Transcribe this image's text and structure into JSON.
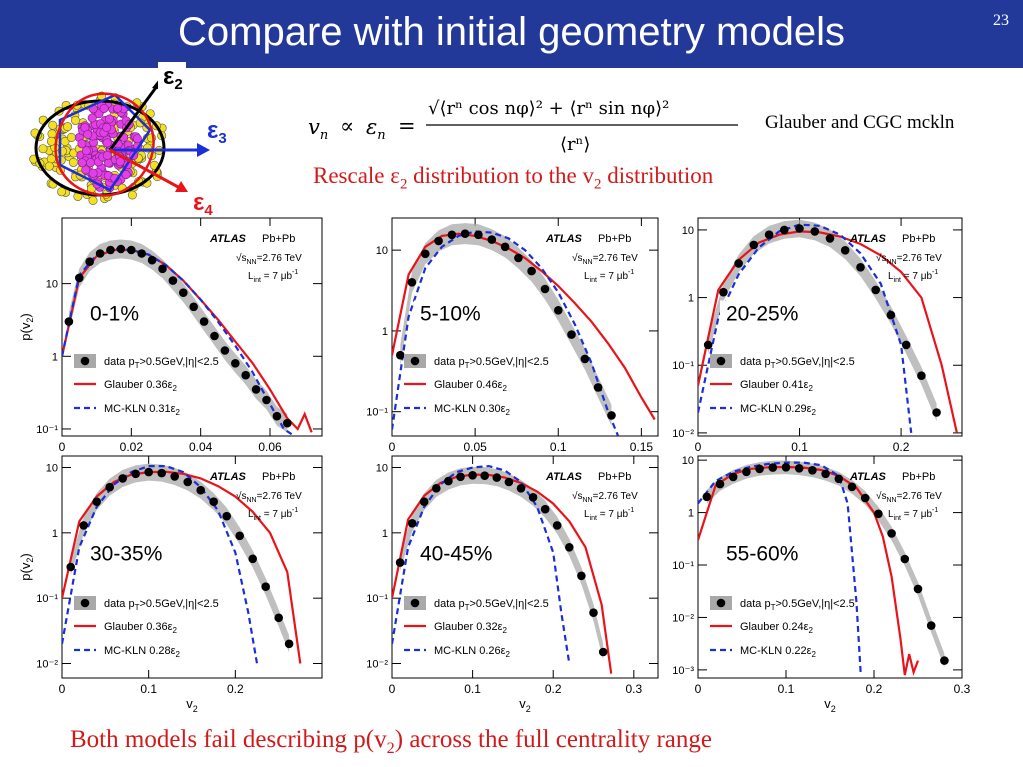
{
  "slide": {
    "title": "Compare with initial geometry models",
    "page_number": "23",
    "formula_lhs": "v",
    "formula_proportional": "∝",
    "formula_eps": "ε",
    "formula_n": "n",
    "formula_num": "√⟨rⁿ cos nφ⟩² + ⟨rⁿ sin nφ⟩²",
    "formula_den": "⟨rⁿ⟩",
    "glauber_label": "Glauber and CGC mckln",
    "rescale_pre": "Rescale ε",
    "rescale_sub1": "2",
    "rescale_mid": " distribution to the v",
    "rescale_sub2": "2",
    "rescale_post": " distribution",
    "bottom_pre": "Both models fail describing p(v",
    "bottom_sub": "2",
    "bottom_post": ") across the full centrality range",
    "eps2_label": "ε",
    "eps2_sub": "2",
    "eps3_label": "ε",
    "eps3_sub": "3",
    "eps4_label": "ε",
    "eps4_sub": "4"
  },
  "legend": {
    "atlas": "ATLAS",
    "system": "Pb+Pb",
    "energy": "s",
    "energy_sub": "NN",
    "energy_val": "=2.76 TeV",
    "lumi": "L",
    "lumi_sub": "int",
    "lumi_val": " = 7 μb",
    "lumi_sup": "-1",
    "data_pre": "data p",
    "data_sub": "T",
    "data_post": ">0.5GeV,|η|<2.5",
    "glauber": "Glauber",
    "mcklN": "MC-KLN",
    "eps_sym": "ε",
    "eps_sub": "2"
  },
  "axes": {
    "ylabel": "p(v",
    "ylabel_sub": "2",
    "ylabel_close": ")",
    "xlabel": "v",
    "xlabel_sub": "2"
  },
  "colors": {
    "header": "#23399a",
    "glauber": "#e8141a",
    "mckln": "#1a2fd6",
    "data": "#000000",
    "band": "#a9a9a9",
    "highlight": "#d21a1a"
  },
  "chart_data": [
    {
      "type": "line",
      "centrality": "0-1%",
      "glauber_scale": "0.36",
      "mckln_scale": "0.31",
      "xlim": [
        0,
        0.075
      ],
      "log_y": true,
      "ylim": [
        0.08,
        80
      ],
      "xticks": [
        "0",
        "0.02",
        "0.04",
        "0.06"
      ],
      "xtick_vals": [
        0,
        0.02,
        0.04,
        0.06
      ],
      "yticks": [
        "10",
        "1",
        "10⁻¹"
      ],
      "ytick_vals": [
        10,
        1,
        0.1
      ],
      "data_x": [
        0.002,
        0.005,
        0.008,
        0.011,
        0.014,
        0.017,
        0.02,
        0.023,
        0.026,
        0.029,
        0.032,
        0.035,
        0.038,
        0.041,
        0.044,
        0.047,
        0.05,
        0.053,
        0.056,
        0.059,
        0.062,
        0.065
      ],
      "data_y": [
        3,
        12,
        20,
        26,
        29,
        30,
        29,
        26,
        21,
        16,
        11,
        7.5,
        4.8,
        3,
        1.9,
        1.2,
        0.8,
        0.55,
        0.35,
        0.25,
        0.15,
        0.12
      ],
      "glauber_x": [
        0,
        0.005,
        0.01,
        0.015,
        0.02,
        0.025,
        0.03,
        0.035,
        0.04,
        0.045,
        0.05,
        0.055,
        0.06,
        0.065,
        0.068,
        0.07,
        0.072
      ],
      "glauber_y": [
        1,
        12,
        24,
        29,
        29,
        25,
        18,
        11,
        6,
        3.2,
        1.6,
        0.8,
        0.35,
        0.14,
        0.1,
        0.16,
        0.09
      ],
      "mckln_x": [
        0,
        0.005,
        0.01,
        0.015,
        0.02,
        0.025,
        0.03,
        0.035,
        0.04,
        0.045,
        0.05,
        0.055,
        0.06,
        0.064,
        0.067
      ],
      "mckln_y": [
        1,
        13,
        25,
        30,
        29,
        25,
        18,
        11,
        6,
        3,
        1.4,
        0.6,
        0.22,
        0.1,
        0.08
      ]
    },
    {
      "type": "line",
      "centrality": "5-10%",
      "glauber_scale": "0.46",
      "mckln_scale": "0.30",
      "xlim": [
        0,
        0.16
      ],
      "log_y": true,
      "ylim": [
        0.05,
        25
      ],
      "xticks": [
        "0",
        "0.05",
        "0.1",
        "0.15"
      ],
      "xtick_vals": [
        0,
        0.05,
        0.1,
        0.15
      ],
      "yticks": [
        "10",
        "1",
        "10⁻¹"
      ],
      "ytick_vals": [
        10,
        1,
        0.1
      ],
      "data_x": [
        0.005,
        0.012,
        0.02,
        0.028,
        0.036,
        0.044,
        0.052,
        0.06,
        0.068,
        0.076,
        0.084,
        0.092,
        0.1,
        0.108,
        0.116,
        0.124,
        0.132
      ],
      "data_y": [
        0.5,
        4,
        9,
        13,
        15.5,
        16,
        15.5,
        13.5,
        11,
        8,
        5.5,
        3.3,
        1.8,
        0.9,
        0.45,
        0.2,
        0.09
      ],
      "glauber_x": [
        0,
        0.01,
        0.02,
        0.03,
        0.04,
        0.05,
        0.06,
        0.07,
        0.08,
        0.09,
        0.1,
        0.11,
        0.12,
        0.13,
        0.14,
        0.15,
        0.158
      ],
      "glauber_y": [
        0.5,
        5,
        11,
        15,
        16,
        15,
        13,
        10.5,
        8,
        5.5,
        3.6,
        2.2,
        1.3,
        0.7,
        0.35,
        0.15,
        0.08
      ],
      "mckln_x": [
        0,
        0.01,
        0.02,
        0.03,
        0.04,
        0.05,
        0.06,
        0.07,
        0.08,
        0.09,
        0.1,
        0.11,
        0.12,
        0.13,
        0.136
      ],
      "mckln_y": [
        0.06,
        1.5,
        6,
        11,
        15,
        17,
        16.5,
        14,
        10,
        6,
        3,
        1.2,
        0.4,
        0.1,
        0.05
      ]
    },
    {
      "type": "line",
      "centrality": "20-25%",
      "glauber_scale": "0.41",
      "mckln_scale": "0.29",
      "xlim": [
        0,
        0.26
      ],
      "log_y": true,
      "ylim": [
        0.009,
        15
      ],
      "xticks": [
        "0",
        "0.1",
        "0.2"
      ],
      "xtick_vals": [
        0,
        0.1,
        0.2
      ],
      "yticks": [
        "10",
        "1",
        "10⁻¹",
        "10⁻²"
      ],
      "ytick_vals": [
        10,
        1,
        0.1,
        0.01
      ],
      "data_x": [
        0.01,
        0.025,
        0.04,
        0.055,
        0.07,
        0.085,
        0.1,
        0.115,
        0.13,
        0.145,
        0.16,
        0.175,
        0.19,
        0.205,
        0.22,
        0.235
      ],
      "data_y": [
        0.2,
        1.2,
        3.2,
        6,
        8.5,
        10,
        10.5,
        9.5,
        7.5,
        5,
        2.8,
        1.3,
        0.55,
        0.2,
        0.07,
        0.02
      ],
      "glauber_x": [
        0,
        0.02,
        0.04,
        0.06,
        0.08,
        0.1,
        0.12,
        0.14,
        0.16,
        0.18,
        0.2,
        0.22,
        0.24,
        0.255
      ],
      "glauber_y": [
        0.05,
        1.3,
        3.6,
        6.5,
        8.5,
        9.5,
        9.2,
        8,
        6.2,
        4.2,
        2.4,
        1,
        0.1,
        0.01
      ],
      "mckln_x": [
        0,
        0.02,
        0.04,
        0.06,
        0.08,
        0.1,
        0.12,
        0.14,
        0.16,
        0.18,
        0.2,
        0.21
      ],
      "mckln_y": [
        0.02,
        0.5,
        2.2,
        5.5,
        9.5,
        12,
        11.5,
        8.5,
        4.5,
        1.6,
        0.2,
        0.01
      ]
    },
    {
      "type": "line",
      "centrality": "30-35%",
      "glauber_scale": "0.36",
      "mckln_scale": "0.28",
      "xlim": [
        0,
        0.3
      ],
      "log_y": true,
      "ylim": [
        0.006,
        15
      ],
      "xticks": [
        "0",
        "0.1",
        "0.2"
      ],
      "xtick_vals": [
        0,
        0.1,
        0.2
      ],
      "yticks": [
        "10",
        "1",
        "10⁻¹",
        "10⁻²"
      ],
      "ytick_vals": [
        10,
        1,
        0.1,
        0.01
      ],
      "data_x": [
        0.01,
        0.025,
        0.04,
        0.055,
        0.07,
        0.085,
        0.1,
        0.115,
        0.13,
        0.145,
        0.16,
        0.175,
        0.19,
        0.205,
        0.22,
        0.235,
        0.25,
        0.262
      ],
      "data_y": [
        0.3,
        1.3,
        3,
        5,
        6.8,
        8,
        8.5,
        8.2,
        7.3,
        6,
        4.5,
        3,
        1.8,
        0.9,
        0.4,
        0.15,
        0.05,
        0.02
      ],
      "glauber_x": [
        0,
        0.02,
        0.04,
        0.06,
        0.08,
        0.1,
        0.12,
        0.14,
        0.16,
        0.18,
        0.2,
        0.22,
        0.24,
        0.26,
        0.275
      ],
      "glauber_y": [
        0.1,
        1.5,
        3.6,
        6,
        7.8,
        8.5,
        8.6,
        8,
        6.8,
        5.2,
        3.6,
        2.1,
        1,
        0.25,
        0.01
      ],
      "mckln_x": [
        0,
        0.02,
        0.04,
        0.06,
        0.08,
        0.1,
        0.12,
        0.14,
        0.16,
        0.18,
        0.2,
        0.215,
        0.225
      ],
      "mckln_y": [
        0.02,
        0.6,
        2.5,
        5.5,
        8.5,
        10.5,
        10.5,
        8.5,
        5,
        2.2,
        0.5,
        0.06,
        0.01
      ]
    },
    {
      "type": "line",
      "centrality": "40-45%",
      "glauber_scale": "0.32",
      "mckln_scale": "0.26",
      "xlim": [
        0,
        0.33
      ],
      "log_y": true,
      "ylim": [
        0.006,
        15
      ],
      "xticks": [
        "0",
        "0.1",
        "0.2",
        "0.3"
      ],
      "xtick_vals": [
        0,
        0.1,
        0.2,
        0.3
      ],
      "yticks": [
        "10",
        "1",
        "10⁻¹",
        "10⁻²"
      ],
      "ytick_vals": [
        10,
        1,
        0.1,
        0.01
      ],
      "data_x": [
        0.01,
        0.025,
        0.04,
        0.055,
        0.07,
        0.085,
        0.1,
        0.115,
        0.13,
        0.145,
        0.16,
        0.175,
        0.19,
        0.205,
        0.22,
        0.235,
        0.25,
        0.262
      ],
      "data_y": [
        0.35,
        1.4,
        3,
        4.8,
        6.2,
        7.2,
        7.6,
        7.5,
        7,
        6,
        4.8,
        3.5,
        2.3,
        1.3,
        0.6,
        0.22,
        0.06,
        0.015
      ],
      "glauber_x": [
        0,
        0.02,
        0.04,
        0.06,
        0.08,
        0.1,
        0.12,
        0.14,
        0.16,
        0.18,
        0.2,
        0.22,
        0.24,
        0.26,
        0.272
      ],
      "glauber_y": [
        0.1,
        1.6,
        3.7,
        5.8,
        7.2,
        7.8,
        7.7,
        7,
        5.8,
        4.3,
        2.8,
        1.5,
        0.6,
        0.08,
        0.007
      ],
      "mckln_x": [
        0,
        0.02,
        0.04,
        0.06,
        0.08,
        0.1,
        0.12,
        0.14,
        0.16,
        0.18,
        0.2,
        0.21,
        0.22
      ],
      "mckln_y": [
        0.02,
        0.6,
        2.5,
        5.5,
        8.5,
        10,
        10.5,
        9,
        6,
        2.5,
        0.5,
        0.06,
        0.01
      ]
    },
    {
      "type": "line",
      "centrality": "55-60%",
      "glauber_scale": "0.24",
      "mckln_scale": "0.22",
      "xlim": [
        0,
        0.3
      ],
      "log_y": true,
      "ylim": [
        0.0007,
        12
      ],
      "xticks": [
        "0",
        "0.1",
        "0.2",
        "0.3"
      ],
      "xtick_vals": [
        0,
        0.1,
        0.2,
        0.3
      ],
      "yticks": [
        "10",
        "1",
        "10⁻¹",
        "10⁻²",
        "10⁻³"
      ],
      "ytick_vals": [
        10,
        1,
        0.1,
        0.01,
        0.001
      ],
      "data_x": [
        0.01,
        0.025,
        0.04,
        0.055,
        0.07,
        0.085,
        0.1,
        0.115,
        0.13,
        0.145,
        0.16,
        0.175,
        0.19,
        0.205,
        0.22,
        0.235,
        0.25,
        0.265,
        0.28
      ],
      "data_y": [
        2,
        3.5,
        4.8,
        6,
        6.8,
        7.2,
        7.3,
        7,
        6.4,
        5.5,
        4.4,
        3.1,
        1.9,
        0.95,
        0.4,
        0.13,
        0.035,
        0.007,
        0.0015
      ],
      "glauber_x": [
        0,
        0.02,
        0.04,
        0.06,
        0.08,
        0.1,
        0.12,
        0.14,
        0.16,
        0.18,
        0.2,
        0.21,
        0.22,
        0.23,
        0.235,
        0.24,
        0.245,
        0.25
      ],
      "glauber_y": [
        0.3,
        3.3,
        5.5,
        6.8,
        7.3,
        7.4,
        7.2,
        6.5,
        5,
        3,
        1,
        0.35,
        0.06,
        0.004,
        0.0008,
        0.002,
        0.0009,
        0.0015
      ],
      "mckln_x": [
        0,
        0.02,
        0.04,
        0.06,
        0.08,
        0.1,
        0.12,
        0.14,
        0.16,
        0.17,
        0.18,
        0.185
      ],
      "mckln_y": [
        1.5,
        4,
        6,
        7.5,
        8.5,
        9,
        9,
        8,
        5,
        1.5,
        0.02,
        0.0008
      ]
    }
  ]
}
